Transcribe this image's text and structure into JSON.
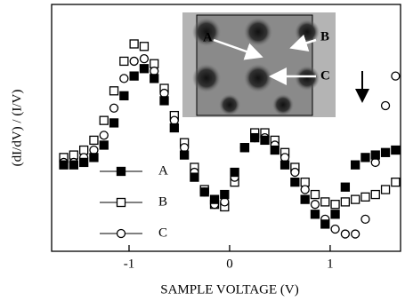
{
  "chart_data": {
    "type": "scatter",
    "xlabel": "SAMPLE VOLTAGE (V)",
    "ylabel": "(dI/dV) / (I/V)",
    "xlim": [
      -1.77,
      1.7
    ],
    "ylim": [
      0,
      10
    ],
    "xticks": [
      -1,
      0,
      1
    ],
    "x": [
      -1.65,
      -1.55,
      -1.45,
      -1.35,
      -1.25,
      -1.15,
      -1.05,
      -0.95,
      -0.85,
      -0.75,
      -0.65,
      -0.55,
      -0.45,
      -0.35,
      -0.25,
      -0.15,
      -0.05,
      0.05,
      0.15,
      0.25,
      0.35,
      0.45,
      0.55,
      0.65,
      0.75,
      0.85,
      0.95,
      1.05,
      1.15,
      1.25,
      1.35,
      1.45,
      1.55,
      1.65
    ],
    "series": [
      {
        "name": "A",
        "marker": "filled-square",
        "color": "#000000",
        "values": [
          3.5,
          3.5,
          3.6,
          3.8,
          4.3,
          5.2,
          6.3,
          7.1,
          7.4,
          7.0,
          6.1,
          5.0,
          3.9,
          3.0,
          2.4,
          2.1,
          2.3,
          3.2,
          4.2,
          4.6,
          4.5,
          4.1,
          3.5,
          2.8,
          2.1,
          1.5,
          1.1,
          1.5,
          2.6,
          3.5,
          3.8,
          3.9,
          4.0,
          4.1
        ]
      },
      {
        "name": "B",
        "marker": "open-square",
        "color": "#000000",
        "values": [
          3.8,
          3.9,
          4.1,
          4.5,
          5.3,
          6.5,
          7.7,
          8.4,
          8.3,
          7.6,
          6.6,
          5.5,
          4.4,
          3.4,
          2.5,
          1.9,
          1.8,
          2.8,
          4.2,
          4.8,
          4.8,
          4.5,
          4.0,
          3.4,
          2.8,
          2.3,
          2.0,
          1.9,
          2.0,
          2.1,
          2.2,
          2.3,
          2.5,
          2.8
        ]
      },
      {
        "name": "C",
        "marker": "open-circle",
        "color": "#000000",
        "values": [
          3.6,
          3.6,
          3.8,
          4.1,
          4.7,
          5.8,
          7.0,
          7.7,
          7.8,
          7.3,
          6.4,
          5.3,
          4.2,
          3.2,
          2.4,
          1.9,
          2.0,
          3.0,
          4.2,
          4.6,
          4.6,
          4.3,
          3.8,
          3.2,
          2.5,
          1.9,
          1.3,
          0.9,
          0.7,
          0.7,
          1.3,
          3.6,
          5.9,
          7.1
        ]
      }
    ],
    "inset_labels": [
      "A",
      "B",
      "C"
    ]
  }
}
